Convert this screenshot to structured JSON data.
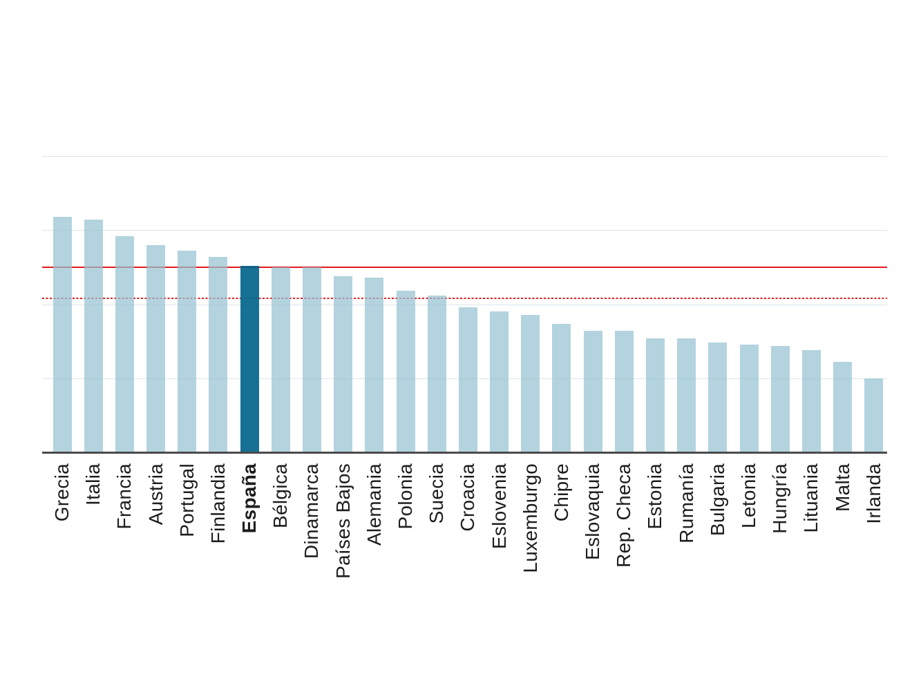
{
  "chart_data": {
    "type": "bar",
    "categories": [
      "Grecia",
      "Italia",
      "Francia",
      "Austria",
      "Portugal",
      "Finlandia",
      "España",
      "Bélgica",
      "Dinamarca",
      "Países Bajos",
      "Alemania",
      "Polonia",
      "Suecia",
      "Croacia",
      "Eslovenia",
      "Luxemburgo",
      "Chipre",
      "Eslovaquia",
      "Rep. Checa",
      "Estonia",
      "Rumanía",
      "Bulgaria",
      "Letonia",
      "Hungría",
      "Lituania",
      "Malta",
      "Irlanda"
    ],
    "values": [
      15.9,
      15.7,
      14.6,
      14.0,
      13.6,
      13.2,
      12.6,
      12.5,
      12.5,
      11.9,
      11.8,
      10.9,
      10.6,
      9.8,
      9.5,
      9.3,
      8.7,
      8.2,
      8.2,
      7.7,
      7.7,
      7.4,
      7.3,
      7.2,
      6.9,
      6.1,
      5.0
    ],
    "highlight_category": "España",
    "xlabel": "",
    "ylabel": "",
    "ylim": [
      0,
      20
    ],
    "gridline_values": [
      5,
      10,
      15,
      20
    ],
    "grid": true,
    "y_tick_labels_visible": false,
    "legend": "none",
    "reference_lines": [
      {
        "value": 12.5,
        "style": "solid",
        "color": "#e3191c"
      },
      {
        "value": 10.4,
        "style": "dotted",
        "color": "#e3191c"
      }
    ],
    "colors": {
      "bar": "#96c2d1",
      "bar_alpha": 0.72,
      "highlight_bar": "#04668c",
      "highlight_bar_alpha": 0.93,
      "gridline": "#dbe5ec",
      "axis": "#4a4a4a",
      "label": "#1d1d1d"
    }
  }
}
